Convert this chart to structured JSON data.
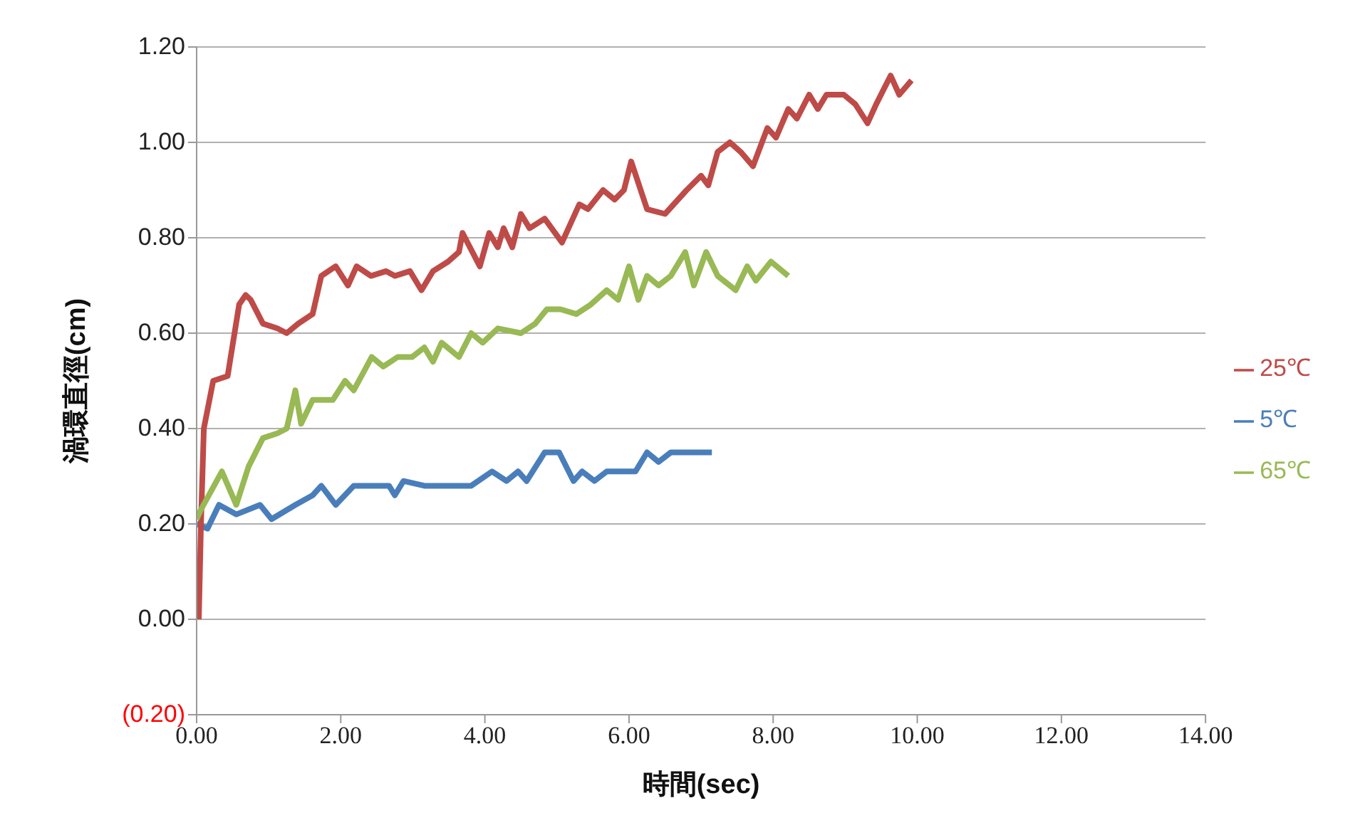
{
  "chart_data": {
    "type": "line",
    "xlabel": "時間(sec)",
    "ylabel": "渦環直徑(cm)",
    "xlim": [
      0,
      14
    ],
    "xticks": [
      {
        "value": 0,
        "label": "0.00"
      },
      {
        "value": 2,
        "label": "2.00"
      },
      {
        "value": 4,
        "label": "4.00"
      },
      {
        "value": 6,
        "label": "6.00"
      },
      {
        "value": 8,
        "label": "8.00"
      },
      {
        "value": 10,
        "label": "10.00"
      },
      {
        "value": 12,
        "label": "12.00"
      },
      {
        "value": 14,
        "label": "14.00"
      }
    ],
    "ylim": [
      -0.2,
      1.2
    ],
    "yticks": [
      {
        "value": -0.2,
        "label": "(0.20)"
      },
      {
        "value": 0,
        "label": "0.00"
      },
      {
        "value": 0.2,
        "label": "0.20"
      },
      {
        "value": 0.4,
        "label": "0.40"
      },
      {
        "value": 0.6,
        "label": "0.60"
      },
      {
        "value": 0.8,
        "label": "0.80"
      },
      {
        "value": 1.0,
        "label": "1.00"
      },
      {
        "value": 1.2,
        "label": "1.20"
      }
    ],
    "grid": "y",
    "legend": "right",
    "marker": "none",
    "line_style": "solid",
    "series": [
      {
        "name": "5℃",
        "color": "#4a7ebb",
        "x": [
          0,
          0.15,
          0.31,
          0.55,
          0.88,
          1.04,
          1.37,
          1.61,
          1.73,
          1.93,
          2.18,
          2.67,
          2.75,
          2.87,
          3.16,
          3.81,
          4.1,
          4.3,
          4.46,
          4.58,
          4.83,
          5.03,
          5.23,
          5.35,
          5.52,
          5.69,
          6.09,
          6.25,
          6.41,
          6.58,
          7.15
        ],
        "values": [
          0.2,
          0.19,
          0.24,
          0.22,
          0.24,
          0.21,
          0.24,
          0.26,
          0.28,
          0.24,
          0.28,
          0.28,
          0.26,
          0.29,
          0.28,
          0.28,
          0.31,
          0.29,
          0.31,
          0.29,
          0.35,
          0.35,
          0.29,
          0.31,
          0.29,
          0.31,
          0.31,
          0.35,
          0.33,
          0.35,
          0.35
        ]
      },
      {
        "name": "25℃",
        "color": "#be4b48",
        "x": [
          0.03,
          0.06,
          0.1,
          0.23,
          0.43,
          0.59,
          0.68,
          0.75,
          0.92,
          1.12,
          1.25,
          1.41,
          1.61,
          1.73,
          1.93,
          2.1,
          2.22,
          2.42,
          2.63,
          2.75,
          2.96,
          3.12,
          3.28,
          3.49,
          3.64,
          3.69,
          3.93,
          4.06,
          4.18,
          4.26,
          4.38,
          4.5,
          4.62,
          4.83,
          5.07,
          5.31,
          5.43,
          5.64,
          5.8,
          5.93,
          6.03,
          6.25,
          6.5,
          6.8,
          7.0,
          7.1,
          7.23,
          7.4,
          7.55,
          7.72,
          7.92,
          8.04,
          8.21,
          8.33,
          8.5,
          8.62,
          8.74,
          8.86,
          8.98,
          9.14,
          9.31,
          9.43,
          9.63,
          9.75,
          9.92
        ],
        "values": [
          0,
          0.2,
          0.4,
          0.5,
          0.51,
          0.66,
          0.68,
          0.67,
          0.62,
          0.61,
          0.6,
          0.62,
          0.64,
          0.72,
          0.74,
          0.7,
          0.74,
          0.72,
          0.73,
          0.72,
          0.73,
          0.69,
          0.73,
          0.75,
          0.77,
          0.81,
          0.74,
          0.81,
          0.78,
          0.82,
          0.78,
          0.85,
          0.82,
          0.84,
          0.79,
          0.87,
          0.86,
          0.9,
          0.88,
          0.9,
          0.96,
          0.86,
          0.85,
          0.9,
          0.93,
          0.91,
          0.98,
          1.0,
          0.98,
          0.95,
          1.03,
          1.01,
          1.07,
          1.05,
          1.1,
          1.07,
          1.1,
          1.1,
          1.1,
          1.08,
          1.04,
          1.08,
          1.14,
          1.1,
          1.13
        ]
      },
      {
        "name": "65℃",
        "color": "#98b954",
        "x": [
          0,
          0.06,
          0.35,
          0.55,
          0.72,
          0.92,
          1.12,
          1.25,
          1.37,
          1.45,
          1.61,
          1.89,
          2.06,
          2.18,
          2.43,
          2.59,
          2.79,
          2.99,
          3.16,
          3.28,
          3.4,
          3.64,
          3.81,
          3.97,
          4.18,
          4.5,
          4.7,
          4.86,
          5.05,
          5.27,
          5.47,
          5.69,
          5.85,
          6.0,
          6.13,
          6.25,
          6.41,
          6.58,
          6.78,
          6.9,
          7.07,
          7.23,
          7.48,
          7.64,
          7.76,
          7.97,
          8.21
        ],
        "values": [
          0.21,
          0.23,
          0.31,
          0.24,
          0.32,
          0.38,
          0.39,
          0.4,
          0.48,
          0.41,
          0.46,
          0.46,
          0.5,
          0.48,
          0.55,
          0.53,
          0.55,
          0.55,
          0.57,
          0.54,
          0.58,
          0.55,
          0.6,
          0.58,
          0.61,
          0.6,
          0.62,
          0.65,
          0.65,
          0.64,
          0.66,
          0.69,
          0.67,
          0.74,
          0.67,
          0.72,
          0.7,
          0.72,
          0.77,
          0.7,
          0.77,
          0.72,
          0.69,
          0.74,
          0.71,
          0.75,
          0.72
        ]
      }
    ]
  }
}
